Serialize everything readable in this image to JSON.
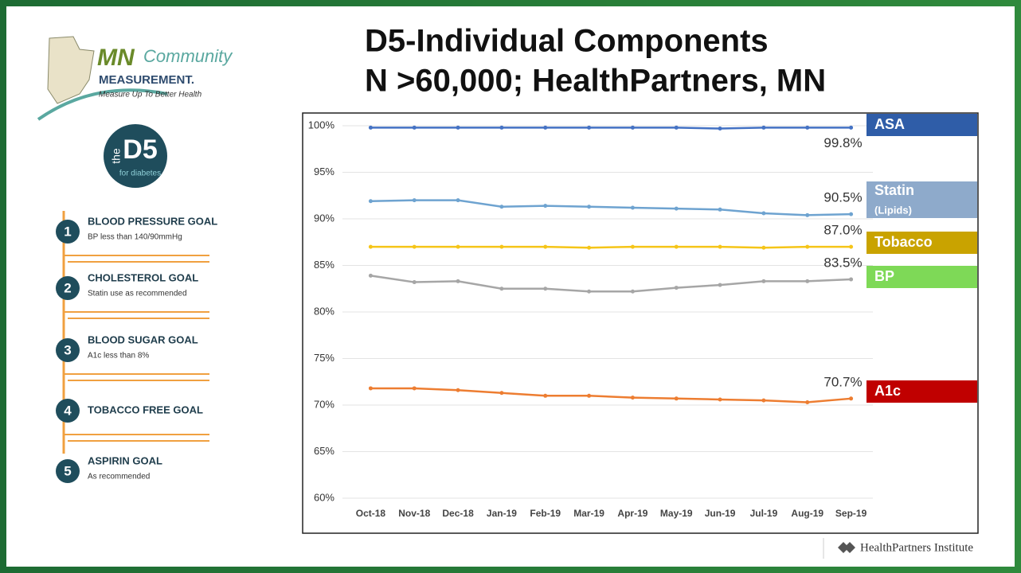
{
  "header": {
    "title_line1": "D5-Individual Components",
    "title_line2": "N >60,000; HealthPartners, MN"
  },
  "logo": {
    "mn": "MN",
    "community": "Community",
    "measurement": "MEASUREMENT.",
    "tagline": "Measure Up To Better Health"
  },
  "badge": {
    "the": "the",
    "d5": "D5",
    "sub": "for diabetes"
  },
  "goals": [
    {
      "number": "1",
      "title": "BLOOD PRESSURE GOAL",
      "detail": "BP less than 140/90mmHg"
    },
    {
      "number": "2",
      "title": "CHOLESTEROL GOAL",
      "detail": "Statin use as recommended"
    },
    {
      "number": "3",
      "title": "BLOOD SUGAR GOAL",
      "detail": "A1c less than 8%"
    },
    {
      "number": "4",
      "title": "TOBACCO FREE GOAL"
    },
    {
      "number": "5",
      "title": "ASPIRIN GOAL",
      "detail": "As recommended"
    }
  ],
  "footer": {
    "brand": "HealthPartners Institute"
  },
  "chart_data": {
    "type": "line",
    "categories": [
      "Oct-18",
      "Nov-18",
      "Dec-18",
      "Jan-19",
      "Feb-19",
      "Mar-19",
      "Apr-19",
      "May-19",
      "Jun-19",
      "Jul-19",
      "Aug-19",
      "Sep-19"
    ],
    "ylim": [
      60,
      100
    ],
    "yticks": [
      {
        "value": 60,
        "label": "60%"
      },
      {
        "value": 65,
        "label": "65%"
      },
      {
        "value": 70,
        "label": "70%"
      },
      {
        "value": 75,
        "label": "75%"
      },
      {
        "value": 80,
        "label": "80%"
      },
      {
        "value": 85,
        "label": "85%"
      },
      {
        "value": 90,
        "label": "90%"
      },
      {
        "value": 95,
        "label": "95%"
      },
      {
        "value": 100,
        "label": "100%"
      }
    ],
    "grid": true,
    "series": [
      {
        "name": "ASA",
        "color": "#4472c4",
        "legend_color": "#2f5da8",
        "values": [
          99.8,
          99.8,
          99.8,
          99.8,
          99.8,
          99.8,
          99.8,
          99.8,
          99.7,
          99.8,
          99.8,
          99.8
        ],
        "value_labels": [
          null,
          null,
          null,
          null,
          null,
          null,
          null,
          null,
          null,
          null,
          null,
          "99.8%"
        ]
      },
      {
        "name": "Statin",
        "subname": "(Lipids)",
        "color": "#6ea3d0",
        "legend_color": "#8eaacb",
        "values": [
          91.9,
          92.0,
          92.0,
          91.3,
          91.4,
          91.3,
          91.2,
          91.1,
          91.0,
          90.6,
          90.4,
          90.5
        ],
        "value_labels": [
          null,
          null,
          null,
          null,
          null,
          null,
          null,
          null,
          null,
          null,
          null,
          "90.5%"
        ]
      },
      {
        "name": "Tobacco",
        "color": "#f5c518",
        "legend_color": "#c9a300",
        "values": [
          87.0,
          87.0,
          87.0,
          87.0,
          87.0,
          86.9,
          87.0,
          87.0,
          87.0,
          86.9,
          87.0,
          87.0
        ],
        "value_labels": [
          null,
          null,
          null,
          null,
          null,
          null,
          null,
          null,
          null,
          null,
          null,
          "87.0%"
        ]
      },
      {
        "name": "BP",
        "color": "#a6a6a6",
        "legend_color": "#7ed957",
        "values": [
          83.9,
          83.2,
          83.3,
          82.5,
          82.5,
          82.2,
          82.2,
          82.6,
          82.9,
          83.3,
          83.3,
          83.5
        ],
        "value_labels": [
          null,
          null,
          null,
          null,
          null,
          null,
          null,
          null,
          null,
          null,
          null,
          "83.5%"
        ]
      },
      {
        "name": "A1c",
        "color": "#ed7d31",
        "legend_color": "#c00000",
        "values": [
          71.8,
          71.8,
          71.6,
          71.3,
          71.0,
          71.0,
          70.8,
          70.7,
          70.6,
          70.5,
          70.3,
          70.7
        ],
        "value_labels": [
          null,
          null,
          null,
          null,
          null,
          null,
          null,
          null,
          null,
          null,
          null,
          "70.7%"
        ]
      }
    ]
  }
}
